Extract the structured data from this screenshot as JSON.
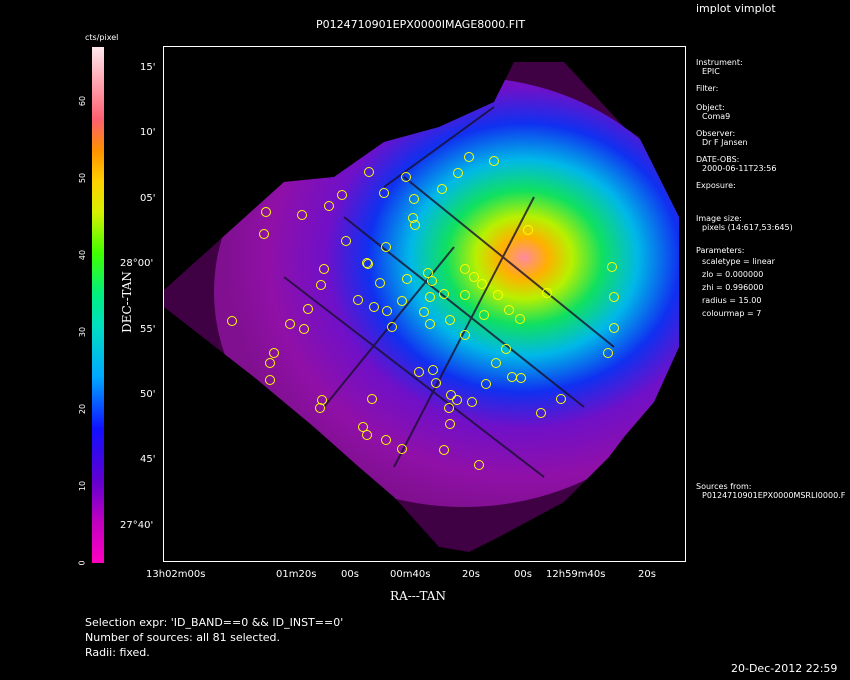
{
  "window": {
    "app_title": "implot vimplot",
    "timestamp": "20-Dec-2012 22:59"
  },
  "plot": {
    "title": "P0124710901EPX0000IMAGE8000.FIT",
    "colorbar_label": "cts/pixel",
    "colorbar_ticks": [
      "0",
      "10",
      "20",
      "30",
      "40",
      "50",
      "60"
    ],
    "xlabel": "RA---TAN",
    "ylabel": "DEC--TAN",
    "xticks": [
      "13h02m00s",
      "01m20s",
      "00s",
      "00m40s",
      "20s",
      "00s",
      "12h59m40s",
      "20s"
    ],
    "yticks": [
      "15'",
      "10'",
      "05'",
      "28°00'",
      "55'",
      "50'",
      "45'",
      "27°40'"
    ],
    "region_color": "#ffff00"
  },
  "info": {
    "instrument_label": "Instrument:",
    "instrument": "EPIC",
    "filter_label": "Filter:",
    "object_label": "Object:",
    "object": "Coma9",
    "observer_label": "Observer:",
    "observer": "Dr F Jansen",
    "date_label": "DATE-OBS:",
    "date": "2000-06-11T23:56",
    "exposure_label": "Exposure:",
    "imagesize_label": "Image size:",
    "imagesize": "pixels (14:617,53:645)",
    "params_label": "Parameters:",
    "params": [
      "scaletype = linear",
      "zlo = 0.000000",
      "zhi = 0.996000",
      "radius = 15.00",
      "colourmap = 7"
    ],
    "sources_label": "Sources from:",
    "sources": "P0124710901EPX0000MSRLI0000.F"
  },
  "footer": {
    "selection": "Selection expr: 'ID_BAND==0 && ID_INST==0'",
    "nsources": "Number of sources: all 81 selected.",
    "radii": "Radii: fixed."
  }
}
